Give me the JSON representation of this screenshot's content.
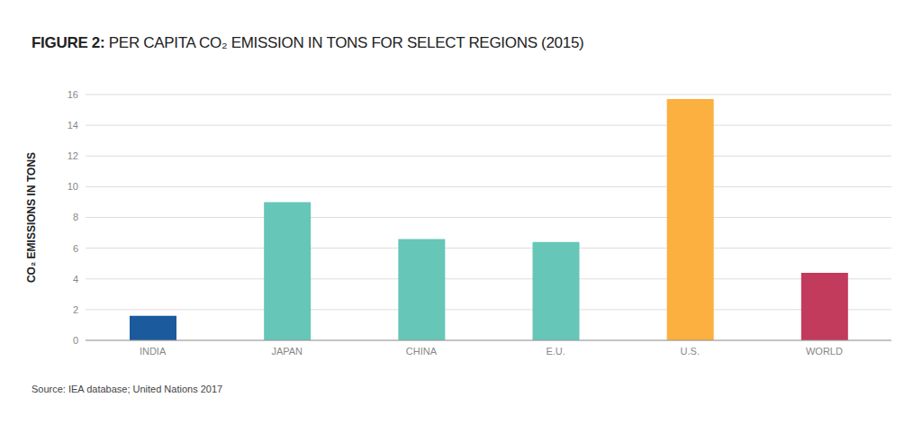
{
  "chart_data": {
    "type": "bar",
    "title": "FIGURE 2: PER CAPITA CO₂ EMISSION IN TONS FOR SELECT REGIONS (2015)",
    "y_label": "CO₂ EMISSIONS IN TONS",
    "source": "Source: IEA database; United Nations 2017",
    "categories": [
      "INDIA",
      "JAPAN",
      "CHINA",
      "E.U.",
      "U.S.",
      "WORLD"
    ],
    "values": [
      1.6,
      9.0,
      6.6,
      6.4,
      15.7,
      4.4
    ],
    "colors": [
      "#1b5a9c",
      "#66c6b8",
      "#66c6b8",
      "#66c6b8",
      "#fbb040",
      "#c23a5c"
    ],
    "ylim": [
      0,
      16
    ],
    "yticks": [
      0,
      2,
      4,
      6,
      8,
      10,
      12,
      14,
      16
    ],
    "grid": true
  }
}
